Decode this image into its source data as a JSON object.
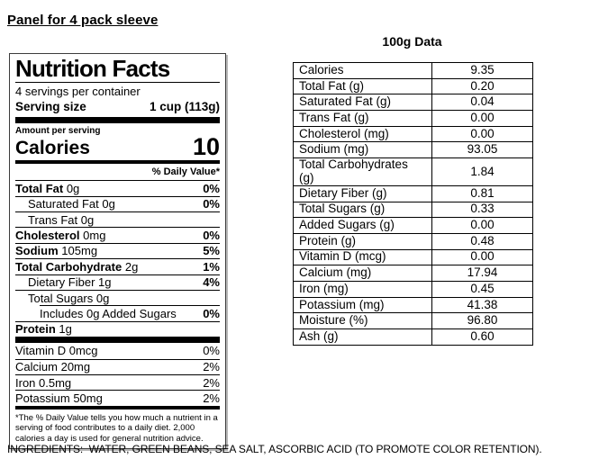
{
  "page": {
    "title": "Panel for 4 pack sleeve",
    "ingredients": "INGREDIENTS:  WATER, GREEN BEANS, SEA SALT, ASCORBIC ACID (TO PROMOTE COLOR RETENTION)."
  },
  "nutrition_label": {
    "title": "Nutrition Facts",
    "servings_per_container": "4 servings per container",
    "serving_size_label": "Serving size",
    "serving_size_value": "1 cup (113g)",
    "amount_per_serving": "Amount per serving",
    "calories_label": "Calories",
    "calories_value": "10",
    "daily_value_header": "% Daily Value*",
    "rows": [
      {
        "name": "Total Fat",
        "amount": "0g",
        "dv": "0%"
      },
      {
        "name": "Saturated Fat",
        "amount": "0g",
        "dv": "0%"
      },
      {
        "name": "Trans Fat",
        "amount": "0g",
        "dv": ""
      },
      {
        "name": "Cholesterol",
        "amount": "0mg",
        "dv": "0%"
      },
      {
        "name": "Sodium",
        "amount": "105mg",
        "dv": "5%"
      },
      {
        "name": "Total Carbohydrate",
        "amount": "2g",
        "dv": "1%"
      },
      {
        "name": "Dietary Fiber",
        "amount": "1g",
        "dv": "4%"
      },
      {
        "name": "Total Sugars",
        "amount": "0g",
        "dv": ""
      },
      {
        "name": "Includes 0g Added Sugars",
        "amount": "",
        "dv": "0%"
      },
      {
        "name": "Protein",
        "amount": "1g",
        "dv": ""
      }
    ],
    "micronutrients": [
      {
        "name": "Vitamin D",
        "amount": "0mcg",
        "dv": "0%"
      },
      {
        "name": "Calcium",
        "amount": "20mg",
        "dv": "2%"
      },
      {
        "name": "Iron",
        "amount": "0.5mg",
        "dv": "2%"
      },
      {
        "name": "Potassium",
        "amount": "50mg",
        "dv": "2%"
      }
    ],
    "footnote": "*The % Daily Value tells you how much a nutrient in a serving of food contributes to a daily diet. 2,000 calories a day is used for general nutrition advice."
  },
  "table_100g": {
    "title": "100g Data",
    "rows": [
      {
        "label": "Calories",
        "value": "9.35"
      },
      {
        "label": "Total Fat (g)",
        "value": "0.20"
      },
      {
        "label": "Saturated Fat (g)",
        "value": "0.04"
      },
      {
        "label": "Trans Fat (g)",
        "value": "0.00"
      },
      {
        "label": "Cholesterol (mg)",
        "value": "0.00"
      },
      {
        "label": "Sodium (mg)",
        "value": "93.05"
      },
      {
        "label": "Total Carbohydrates (g)",
        "value": "1.84"
      },
      {
        "label": "Dietary Fiber (g)",
        "value": "0.81"
      },
      {
        "label": "Total Sugars (g)",
        "value": "0.33"
      },
      {
        "label": "Added Sugars (g)",
        "value": "0.00"
      },
      {
        "label": "Protein (g)",
        "value": "0.48"
      },
      {
        "label": "Vitamin D (mcg)",
        "value": "0.00"
      },
      {
        "label": "Calcium (mg)",
        "value": "17.94"
      },
      {
        "label": "Iron (mg)",
        "value": "0.45"
      },
      {
        "label": "Potassium (mg)",
        "value": "41.38"
      },
      {
        "label": "Moisture (%)",
        "value": "96.80"
      },
      {
        "label": "Ash (g)",
        "value": "0.60"
      }
    ]
  }
}
